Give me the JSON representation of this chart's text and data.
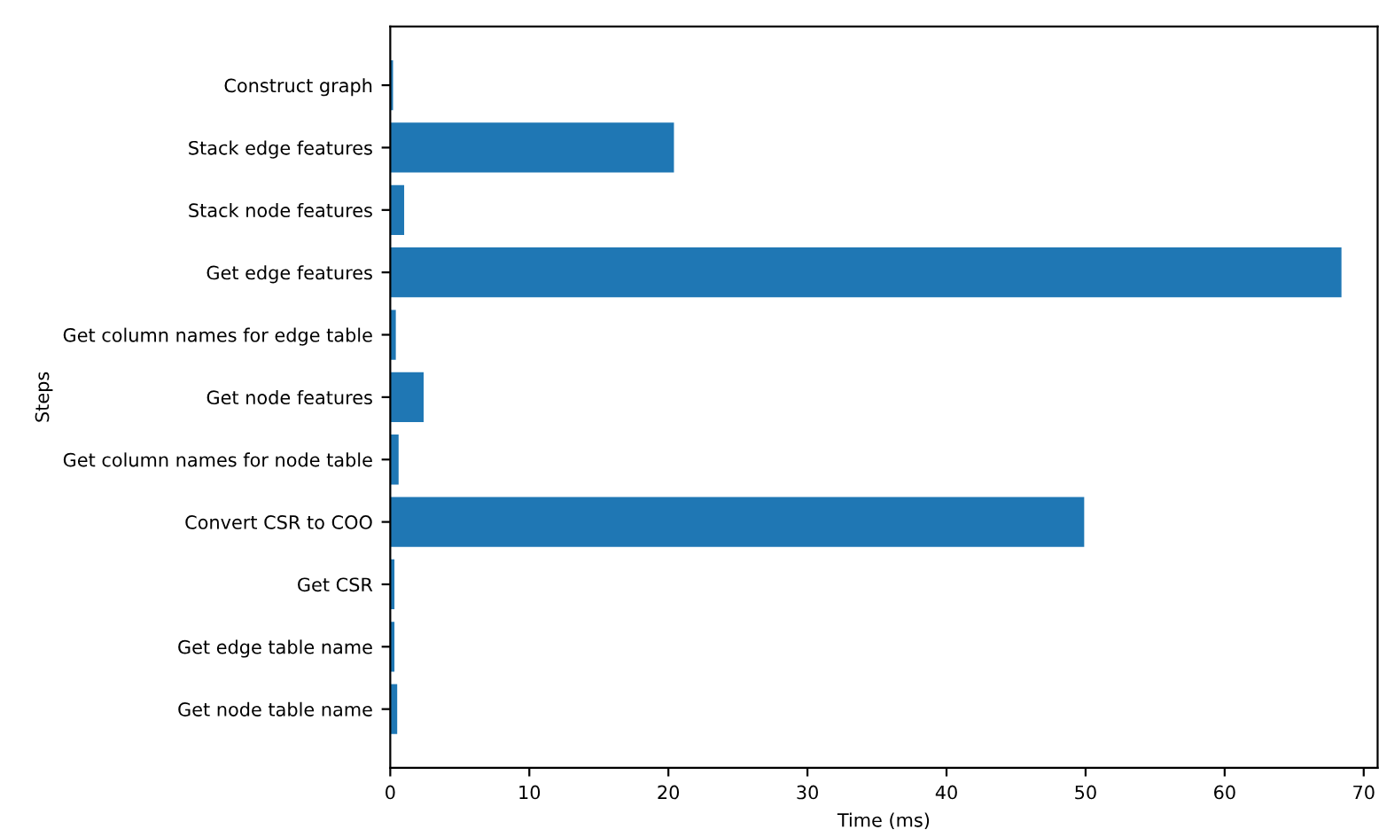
{
  "chart_data": {
    "type": "bar",
    "orientation": "horizontal",
    "xlabel": "Time (ms)",
    "ylabel": "Steps",
    "categories": [
      "Construct graph",
      "Stack edge features",
      "Stack node features",
      "Get edge features",
      "Get column names for edge table",
      "Get node features",
      "Get column names for node table",
      "Convert CSR to COO",
      "Get CSR",
      "Get edge table name",
      "Get node table name"
    ],
    "values": [
      0.2,
      20.4,
      1.0,
      68.4,
      0.4,
      2.4,
      0.6,
      49.9,
      0.3,
      0.3,
      0.5
    ],
    "color": "#1f77b4",
    "xlim": [
      0,
      71
    ],
    "xticks": [
      0,
      10,
      20,
      30,
      40,
      50,
      60,
      70
    ],
    "grid": false,
    "legend": false
  }
}
